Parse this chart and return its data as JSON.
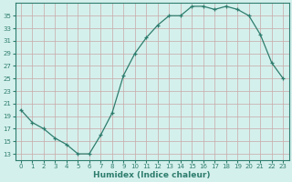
{
  "x": [
    0,
    1,
    2,
    3,
    4,
    5,
    6,
    7,
    8,
    9,
    10,
    11,
    12,
    13,
    14,
    15,
    16,
    17,
    18,
    19,
    20,
    21,
    22,
    23
  ],
  "y": [
    20,
    18,
    17,
    15.5,
    14.5,
    13,
    13,
    16,
    19.5,
    25.5,
    29,
    31.5,
    33.5,
    35,
    35,
    36.5,
    36.5,
    36,
    36.5,
    36,
    35,
    32,
    27.5,
    25
  ],
  "line_color": "#2e7d6e",
  "marker": "+",
  "bg_color": "#d4f0ec",
  "grid_color": "#c8a8a8",
  "xlabel": "Humidex (Indice chaleur)",
  "xlim": [
    -0.5,
    23.5
  ],
  "ylim": [
    12,
    37
  ],
  "yticks": [
    13,
    15,
    17,
    19,
    21,
    23,
    25,
    27,
    29,
    31,
    33,
    35
  ],
  "xticks": [
    0,
    1,
    2,
    3,
    4,
    5,
    6,
    7,
    8,
    9,
    10,
    11,
    12,
    13,
    14,
    15,
    16,
    17,
    18,
    19,
    20,
    21,
    22,
    23
  ],
  "tick_fontsize": 5.0,
  "label_fontsize": 6.5
}
